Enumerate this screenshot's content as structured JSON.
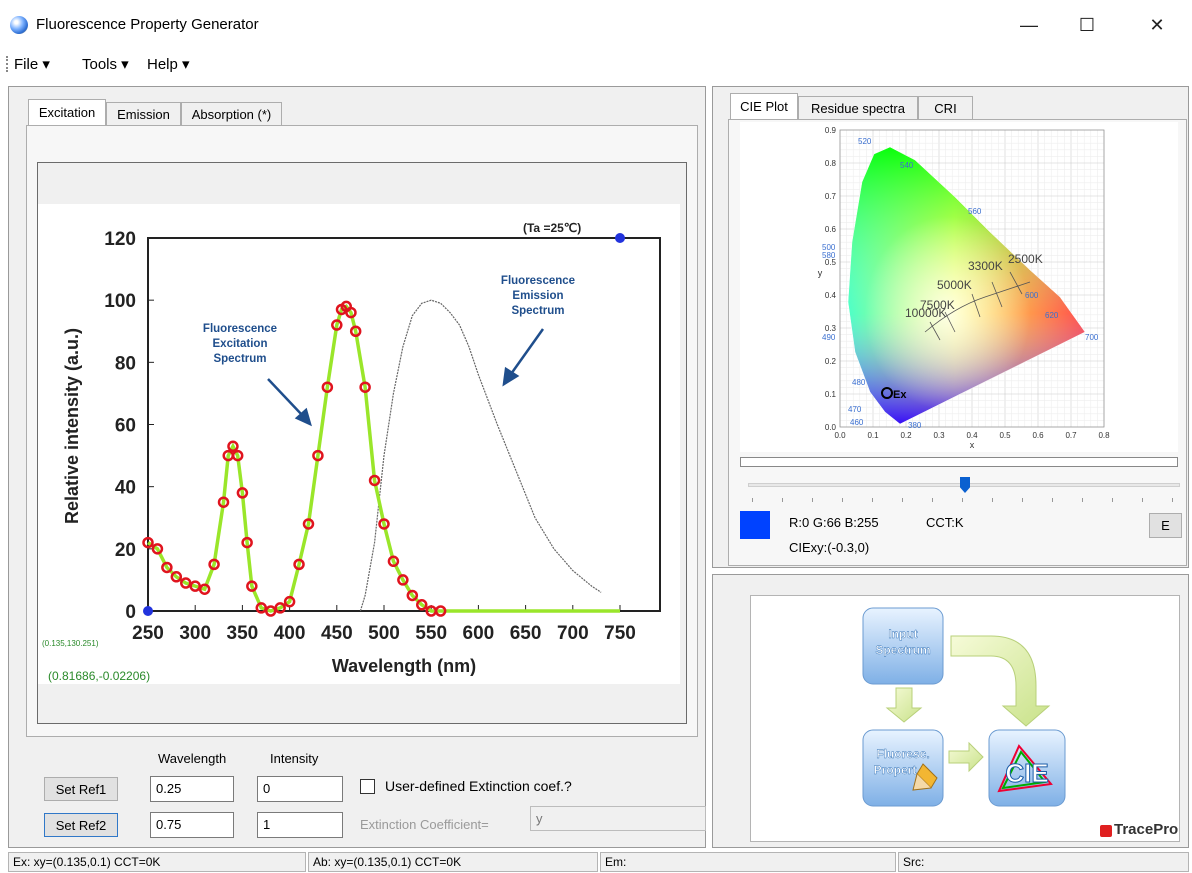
{
  "window": {
    "title": "Fluorescence Property Generator",
    "controls": {
      "minimize": "—",
      "maximize": "☐",
      "close": "✕"
    }
  },
  "menu": [
    {
      "label": "File ▾"
    },
    {
      "label": "Tools ▾"
    },
    {
      "label": "Help ▾"
    }
  ],
  "left_panel": {
    "tabs": [
      "Excitation",
      "Emission",
      "Absorption (*)"
    ],
    "active_tab": "Excitation",
    "graph": {
      "top_right_note": "(Ta =25℃)",
      "ylabel": "Relative intensity (a.u.)",
      "xlabel": "Wavelength (nm)",
      "xticks": [
        "250",
        "300",
        "350",
        "400",
        "450",
        "500",
        "550",
        "600",
        "650",
        "700",
        "750"
      ],
      "yticks": [
        "0",
        "20",
        "40",
        "60",
        "80",
        "100",
        "120"
      ],
      "annotation_excitation": [
        "Fluorescence",
        "Excitation",
        "Spectrum"
      ],
      "annotation_emission": [
        "Fluorescence",
        "Emission",
        "Spectrum"
      ],
      "coord_small": "(0.135,130.251)",
      "coord_main": "(0.81686,-0.02206)"
    },
    "chart_data": {
      "type": "line",
      "xlabel": "Wavelength (nm)",
      "ylabel": "Relative intensity (a.u.)",
      "xlim": [
        250,
        750
      ],
      "ylim": [
        0,
        120
      ],
      "series": [
        {
          "name": "Fluorescence Excitation Spectrum",
          "x": [
            250,
            260,
            270,
            280,
            290,
            300,
            310,
            320,
            330,
            335,
            340,
            345,
            350,
            355,
            360,
            370,
            380,
            390,
            400,
            410,
            420,
            430,
            440,
            450,
            455,
            460,
            465,
            470,
            480,
            490,
            500,
            510,
            520,
            530,
            540,
            550,
            560
          ],
          "y": [
            22,
            20,
            14,
            11,
            9,
            8,
            7,
            15,
            35,
            50,
            53,
            50,
            38,
            22,
            8,
            1,
            0,
            1,
            3,
            15,
            28,
            50,
            72,
            92,
            97,
            98,
            96,
            90,
            72,
            42,
            28,
            16,
            10,
            5,
            2,
            0,
            0
          ]
        },
        {
          "name": "Fluorescence Emission Spectrum",
          "x": [
            475,
            480,
            490,
            500,
            510,
            520,
            530,
            540,
            550,
            560,
            570,
            580,
            590,
            600,
            620,
            640,
            660,
            680,
            700,
            720,
            730
          ],
          "y": [
            0,
            5,
            22,
            50,
            70,
            85,
            95,
            99,
            100,
            99,
            96,
            92,
            85,
            76,
            60,
            45,
            30,
            20,
            13,
            8,
            6
          ]
        }
      ]
    },
    "reference": {
      "wavelength_header": "Wavelength",
      "intensity_header": "Intensity",
      "set_ref1": "Set Ref1",
      "set_ref2": "Set Ref2",
      "ref1_wavelength": "0.25",
      "ref1_intensity": "0",
      "ref2_wavelength": "0.75",
      "ref2_intensity": "1",
      "user_defined_label": "User-defined Extinction coef.?",
      "extinction_label": "Extinction Coefficient=",
      "extinction_value": "y"
    }
  },
  "right_panel": {
    "tabs": [
      "CIE Plot",
      "Residue spectra",
      "CRI"
    ],
    "active_tab": "CIE Plot",
    "cie": {
      "xlabel": "x",
      "ylabel": "y",
      "xticks": [
        "0.0",
        "0.1",
        "0.2",
        "0.3",
        "0.4",
        "0.5",
        "0.6",
        "0.7",
        "0.8"
      ],
      "yticks": [
        "0.0",
        "0.1",
        "0.2",
        "0.3",
        "0.4",
        "0.5",
        "0.6",
        "0.7",
        "0.8",
        "0.9"
      ],
      "wavelength_labels": [
        "520",
        "540",
        "560",
        "500",
        "580",
        "600",
        "620",
        "700",
        "490",
        "480",
        "470",
        "460",
        "380"
      ],
      "cct_labels": [
        "2500K",
        "3300K",
        "5000K",
        "7500K",
        "10000K"
      ],
      "marker_label": "Ex"
    },
    "color_info": {
      "swatch_color": "#0042ff",
      "rgb_text": "R:0 G:66 B:255",
      "cct_text": "CCT:K",
      "ciexy_text": "CIExy:(-0.3,0)",
      "e_button": "E"
    },
    "flow": {
      "input_label": [
        "Input",
        "Spectrum"
      ],
      "fluor_label": [
        "Fluoresc.",
        "Propert"
      ],
      "cie_label": "CIE",
      "brand": "TracePro"
    }
  },
  "status_bar": {
    "ex": "Ex: xy=(0.135,0.1)  CCT=0K",
    "ab": "Ab: xy=(0.135,0.1)  CCT=0K",
    "em": "Em:",
    "src": "Src:"
  },
  "colors": {
    "excitation_line": "#9ae62a",
    "marker_red": "#e0141e",
    "marker_blue": "#2233dd",
    "accent_blue": "#3078c8"
  }
}
